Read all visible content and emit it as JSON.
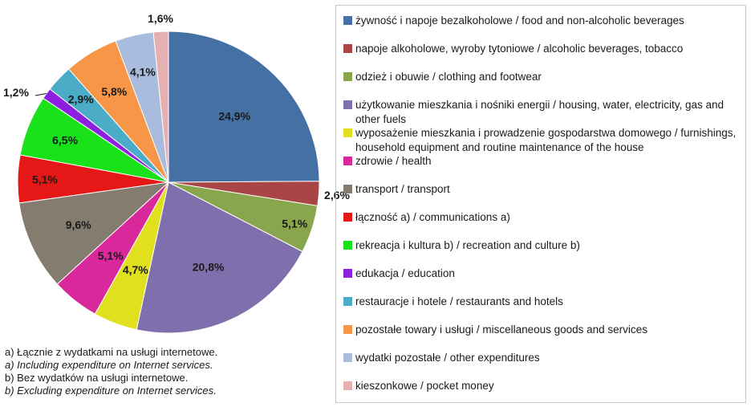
{
  "chart_data": {
    "type": "pie",
    "series": [
      {
        "label": "żywność i napoje bezalkoholowe / food and non-alcoholic beverages",
        "value": 24.9,
        "value_label": "24,9%",
        "color": "#4470a4"
      },
      {
        "label": "napoje alkoholowe, wyroby tytoniowe / alcoholic beverages, tobacco",
        "value": 2.6,
        "value_label": "2,6%",
        "color": "#a94544"
      },
      {
        "label": "odzież i obuwie / clothing and footwear",
        "value": 5.1,
        "value_label": "5,1%",
        "color": "#89a54e"
      },
      {
        "label": "użytkowanie mieszkania i nośniki energii / housing, water, electricity, gas and other fuels",
        "value": 20.8,
        "value_label": "20,8%",
        "color": "#7f70ad"
      },
      {
        "label": "wyposażenie mieszkania i prowadzenie gospodarstwa domowego / furnishings, household equipment and routine maintenance of the house",
        "value": 4.7,
        "value_label": "4,7%",
        "color": "#e0e01f"
      },
      {
        "label": "zdrowie / health",
        "value": 5.1,
        "value_label": "5,1%",
        "color": "#d9289c"
      },
      {
        "label": "transport / transport",
        "value": 9.6,
        "value_label": "9,6%",
        "color": "#847c6e"
      },
      {
        "label": "łączność a) / communications a)",
        "value": 5.1,
        "value_label": "5,1%",
        "color": "#e51717"
      },
      {
        "label": "rekreacja i kultura b) / recreation and culture b)",
        "value": 6.5,
        "value_label": "6,5%",
        "color": "#19e21b"
      },
      {
        "label": "edukacja / education",
        "value": 1.2,
        "value_label": "1,2%",
        "color": "#8c1fe0"
      },
      {
        "label": "restauracje i hotele / restaurants and hotels",
        "value": 2.9,
        "value_label": "2,9%",
        "color": "#4aacc6"
      },
      {
        "label": "pozostałe towary i usługi / miscellaneous goods and services",
        "value": 5.8,
        "value_label": "5,8%",
        "color": "#f79646"
      },
      {
        "label": "wydatki pozostałe / other expenditures",
        "value": 4.1,
        "value_label": "4,1%",
        "color": "#a9bcdd"
      },
      {
        "label": "kieszonkowe / pocket money",
        "value": 1.6,
        "value_label": "1,6%",
        "color": "#e6b0b0"
      }
    ],
    "legend_placement": "right"
  },
  "footnotes": [
    {
      "text": "a) Łącznie z wydatkami na usługi internetowe.",
      "italic": false
    },
    {
      "text": "a) Including  expenditure on Internet services.",
      "italic": true
    },
    {
      "text": "b) Bez wydatków na usługi internetowe.",
      "italic": false
    },
    {
      "text": "b) Excluding expenditure on Internet services.",
      "italic": true
    }
  ]
}
